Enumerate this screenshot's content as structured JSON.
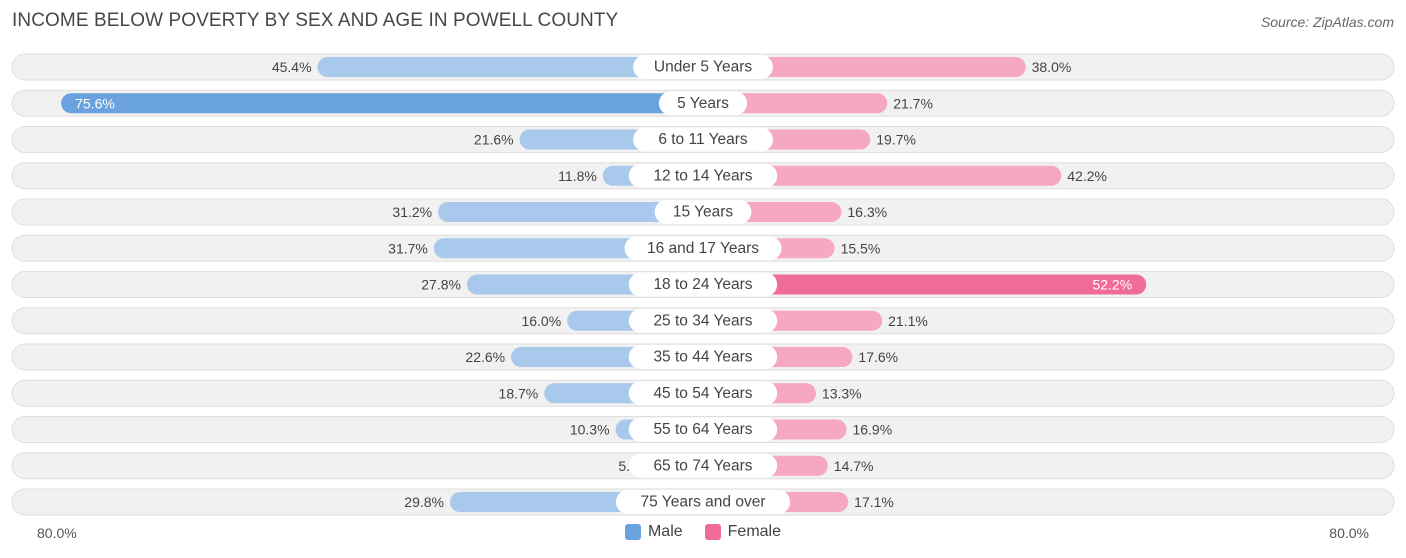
{
  "title": "INCOME BELOW POVERTY BY SEX AND AGE IN POWELL COUNTY",
  "source": "Source: ZipAtlas.com",
  "axis": {
    "left_label": "80.0%",
    "right_label": "80.0%"
  },
  "legend": {
    "male_label": "Male",
    "female_label": "Female"
  },
  "colors": {
    "male_light": "#a8c8ec",
    "male_strong": "#6aa2df",
    "female_light": "#f5a8c0",
    "female_strong": "#f06b95",
    "track": "#f1f1f1",
    "track_border": "#dedede"
  },
  "chart_data": {
    "type": "bar",
    "orientation": "horizontal-diverging",
    "xlim": [
      -80,
      80
    ],
    "unit": "%",
    "categories": [
      "Under 5 Years",
      "5 Years",
      "6 to 11 Years",
      "12 to 14 Years",
      "15 Years",
      "16 and 17 Years",
      "18 to 24 Years",
      "25 to 34 Years",
      "35 to 44 Years",
      "45 to 54 Years",
      "55 to 64 Years",
      "65 to 74 Years",
      "75 Years and over"
    ],
    "series": [
      {
        "name": "Male",
        "values": [
          45.4,
          75.6,
          21.6,
          11.8,
          31.2,
          31.7,
          27.8,
          16.0,
          22.6,
          18.7,
          10.3,
          5.5,
          29.8
        ],
        "labels": [
          "45.4%",
          "75.6%",
          "21.6%",
          "11.8%",
          "31.2%",
          "31.7%",
          "27.8%",
          "16.0%",
          "22.6%",
          "18.7%",
          "10.3%",
          "5.5%",
          "29.8%"
        ]
      },
      {
        "name": "Female",
        "values": [
          38.0,
          21.7,
          19.7,
          42.2,
          16.3,
          15.5,
          52.2,
          21.1,
          17.6,
          13.3,
          16.9,
          14.7,
          17.1
        ],
        "labels": [
          "38.0%",
          "21.7%",
          "19.7%",
          "42.2%",
          "16.3%",
          "15.5%",
          "52.2%",
          "21.1%",
          "17.6%",
          "13.3%",
          "16.9%",
          "14.7%",
          "17.1%"
        ]
      }
    ]
  }
}
